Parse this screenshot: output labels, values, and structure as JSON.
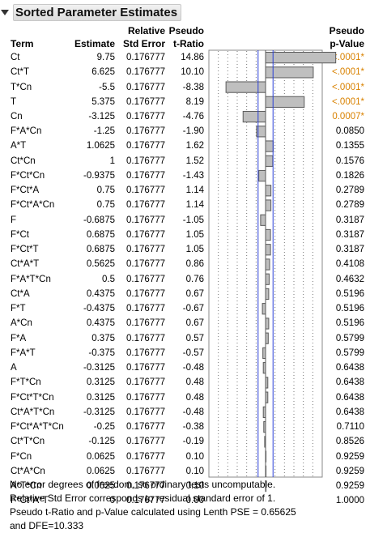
{
  "title": "Sorted Parameter Estimates",
  "headers": {
    "term": "Term",
    "estimate": "Estimate",
    "rse_line1": "Relative",
    "rse_line2": "Std Error",
    "tratio_line1": "Pseudo",
    "tratio_line2": "t-Ratio",
    "pvalue_line1": "Pseudo",
    "pvalue_line2": "p-Value"
  },
  "rows": [
    {
      "term": "Ct",
      "estimate": "9.75",
      "rse": "0.176777",
      "t": "14.86",
      "p": "<.0001*",
      "sig": true
    },
    {
      "term": "Ct*T",
      "estimate": "6.625",
      "rse": "0.176777",
      "t": "10.10",
      "p": "<.0001*",
      "sig": true
    },
    {
      "term": "T*Cn",
      "estimate": "-5.5",
      "rse": "0.176777",
      "t": "-8.38",
      "p": "<.0001*",
      "sig": true
    },
    {
      "term": "T",
      "estimate": "5.375",
      "rse": "0.176777",
      "t": "8.19",
      "p": "<.0001*",
      "sig": true
    },
    {
      "term": "Cn",
      "estimate": "-3.125",
      "rse": "0.176777",
      "t": "-4.76",
      "p": "0.0007*",
      "sig": true
    },
    {
      "term": "F*A*Cn",
      "estimate": "-1.25",
      "rse": "0.176777",
      "t": "-1.90",
      "p": "0.0850",
      "sig": false
    },
    {
      "term": "A*T",
      "estimate": "1.0625",
      "rse": "0.176777",
      "t": "1.62",
      "p": "0.1355",
      "sig": false
    },
    {
      "term": "Ct*Cn",
      "estimate": "1",
      "rse": "0.176777",
      "t": "1.52",
      "p": "0.1576",
      "sig": false
    },
    {
      "term": "F*Ct*Cn",
      "estimate": "-0.9375",
      "rse": "0.176777",
      "t": "-1.43",
      "p": "0.1826",
      "sig": false
    },
    {
      "term": "F*Ct*A",
      "estimate": "0.75",
      "rse": "0.176777",
      "t": "1.14",
      "p": "0.2789",
      "sig": false
    },
    {
      "term": "F*Ct*A*Cn",
      "estimate": "0.75",
      "rse": "0.176777",
      "t": "1.14",
      "p": "0.2789",
      "sig": false
    },
    {
      "term": "F",
      "estimate": "-0.6875",
      "rse": "0.176777",
      "t": "-1.05",
      "p": "0.3187",
      "sig": false
    },
    {
      "term": "F*Ct",
      "estimate": "0.6875",
      "rse": "0.176777",
      "t": "1.05",
      "p": "0.3187",
      "sig": false
    },
    {
      "term": "F*Ct*T",
      "estimate": "0.6875",
      "rse": "0.176777",
      "t": "1.05",
      "p": "0.3187",
      "sig": false
    },
    {
      "term": "Ct*A*T",
      "estimate": "0.5625",
      "rse": "0.176777",
      "t": "0.86",
      "p": "0.4108",
      "sig": false
    },
    {
      "term": "F*A*T*Cn",
      "estimate": "0.5",
      "rse": "0.176777",
      "t": "0.76",
      "p": "0.4632",
      "sig": false
    },
    {
      "term": "Ct*A",
      "estimate": "0.4375",
      "rse": "0.176777",
      "t": "0.67",
      "p": "0.5196",
      "sig": false
    },
    {
      "term": "F*T",
      "estimate": "-0.4375",
      "rse": "0.176777",
      "t": "-0.67",
      "p": "0.5196",
      "sig": false
    },
    {
      "term": "A*Cn",
      "estimate": "0.4375",
      "rse": "0.176777",
      "t": "0.67",
      "p": "0.5196",
      "sig": false
    },
    {
      "term": "F*A",
      "estimate": "0.375",
      "rse": "0.176777",
      "t": "0.57",
      "p": "0.5799",
      "sig": false
    },
    {
      "term": "F*A*T",
      "estimate": "-0.375",
      "rse": "0.176777",
      "t": "-0.57",
      "p": "0.5799",
      "sig": false
    },
    {
      "term": "A",
      "estimate": "-0.3125",
      "rse": "0.176777",
      "t": "-0.48",
      "p": "0.6438",
      "sig": false
    },
    {
      "term": "F*T*Cn",
      "estimate": "0.3125",
      "rse": "0.176777",
      "t": "0.48",
      "p": "0.6438",
      "sig": false
    },
    {
      "term": "F*Ct*T*Cn",
      "estimate": "0.3125",
      "rse": "0.176777",
      "t": "0.48",
      "p": "0.6438",
      "sig": false
    },
    {
      "term": "Ct*A*T*Cn",
      "estimate": "-0.3125",
      "rse": "0.176777",
      "t": "-0.48",
      "p": "0.6438",
      "sig": false
    },
    {
      "term": "F*Ct*A*T*Cn",
      "estimate": "-0.25",
      "rse": "0.176777",
      "t": "-0.38",
      "p": "0.7110",
      "sig": false
    },
    {
      "term": "Ct*T*Cn",
      "estimate": "-0.125",
      "rse": "0.176777",
      "t": "-0.19",
      "p": "0.8526",
      "sig": false
    },
    {
      "term": "F*Cn",
      "estimate": "0.0625",
      "rse": "0.176777",
      "t": "0.10",
      "p": "0.9259",
      "sig": false
    },
    {
      "term": "Ct*A*Cn",
      "estimate": "0.0625",
      "rse": "0.176777",
      "t": "0.10",
      "p": "0.9259",
      "sig": false
    },
    {
      "term": "A*T*Cn",
      "estimate": "0.0625",
      "rse": "0.176777",
      "t": "0.10",
      "p": "0.9259",
      "sig": false
    },
    {
      "term": "F*Ct*A*T",
      "estimate": "0",
      "rse": "0.176777",
      "t": "0.00",
      "p": "1.0000",
      "sig": false
    }
  ],
  "chart_data": {
    "type": "bar",
    "orientation": "horizontal",
    "value_field": "t",
    "xlim": [
      -12,
      12
    ],
    "reference_line_at": 0,
    "critical_lines": [
      -1.58,
      1.58
    ],
    "dotted_grid_at": [
      -10,
      -8,
      -6,
      -4,
      -2,
      2,
      4,
      6,
      8,
      10
    ]
  },
  "colors": {
    "bar_fill": "#bfbfbf",
    "bar_stroke": "#5a5a5a",
    "critical_line": "#2a3fd6",
    "significant_text": "#d98200"
  },
  "footer": [
    "No error degrees of freedom, so ordinary tests uncomputable.",
    "Relative Std Error corresponds to residual standard error of 1.",
    "Pseudo t-Ratio and p-Value calculated using Lenth PSE = 0.65625",
    "and DFE=10.333"
  ]
}
